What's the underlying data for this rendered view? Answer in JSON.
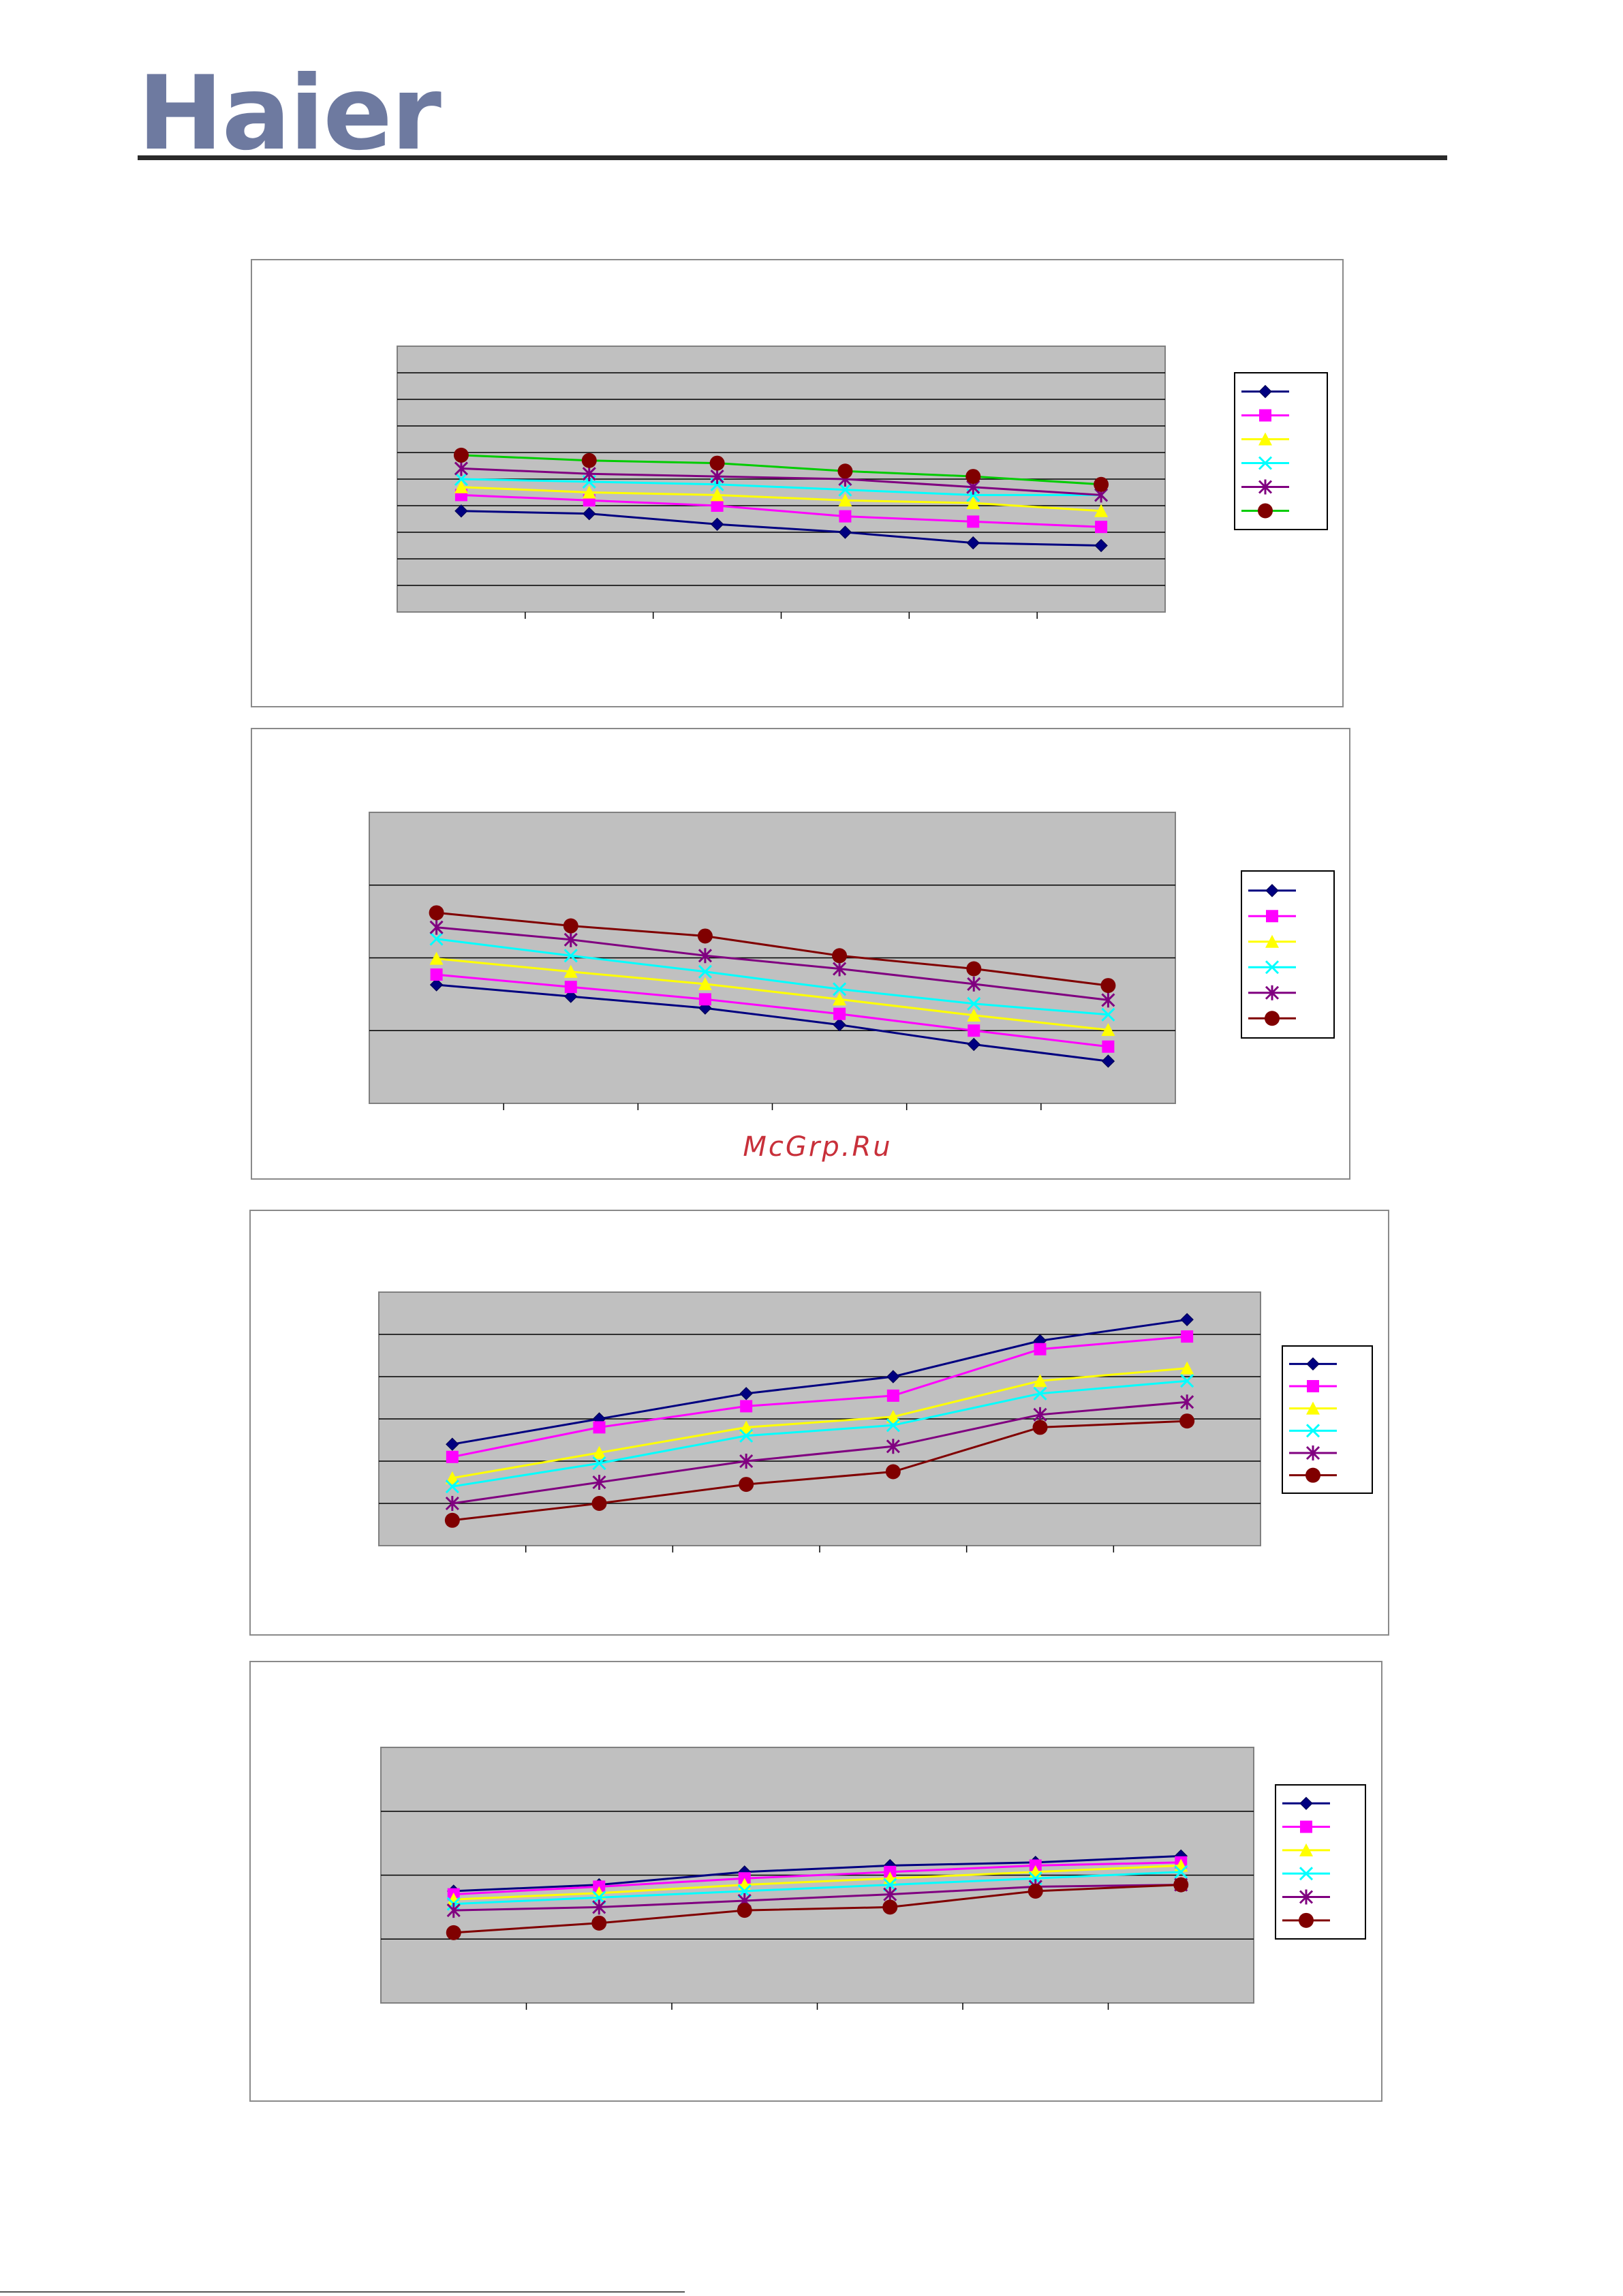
{
  "brand": {
    "logo_text": "Haier",
    "logo_color": "#6e7aa0"
  },
  "watermark": {
    "text": "McGrp.Ru",
    "color": "#c8303a"
  },
  "series_style": [
    {
      "color": "#000080",
      "marker": "diamond"
    },
    {
      "color": "#ff00ff",
      "marker": "square"
    },
    {
      "color": "#ffff00",
      "marker": "triangle"
    },
    {
      "color": "#00ffff",
      "marker": "x"
    },
    {
      "color": "#800080",
      "marker": "star"
    },
    {
      "color": "#800000",
      "marker": "circle"
    }
  ],
  "chart_data": [
    {
      "type": "line",
      "plot_background": "#c0c0c0",
      "grid": true,
      "legend": "right",
      "ylim": [
        0,
        10
      ],
      "gridlines": 10,
      "x": [
        1,
        2,
        3,
        4,
        5,
        6
      ],
      "series_colors_override": {
        "5": {
          "color": "#00cc00",
          "marker_color": "#800000"
        }
      },
      "series": [
        {
          "values": [
            3.8,
            3.7,
            3.3,
            3.0,
            2.6,
            2.5
          ]
        },
        {
          "values": [
            4.4,
            4.2,
            4.0,
            3.6,
            3.4,
            3.2
          ]
        },
        {
          "values": [
            4.7,
            4.5,
            4.4,
            4.2,
            4.1,
            3.8
          ]
        },
        {
          "values": [
            5.0,
            4.9,
            4.8,
            4.6,
            4.4,
            4.4
          ]
        },
        {
          "values": [
            5.4,
            5.2,
            5.1,
            5.0,
            4.7,
            4.4
          ]
        },
        {
          "values": [
            5.9,
            5.7,
            5.6,
            5.3,
            5.1,
            4.8
          ]
        }
      ]
    },
    {
      "type": "line",
      "plot_background": "#c0c0c0",
      "grid": true,
      "legend": "right",
      "ylim": [
        0,
        4
      ],
      "gridlines": 4,
      "x": [
        1,
        2,
        3,
        4,
        5,
        6
      ],
      "series": [
        {
          "values": [
            1.63,
            1.47,
            1.31,
            1.08,
            0.81,
            0.58
          ]
        },
        {
          "values": [
            1.77,
            1.6,
            1.43,
            1.23,
            1.0,
            0.78
          ]
        },
        {
          "values": [
            1.99,
            1.81,
            1.64,
            1.43,
            1.21,
            1.01
          ]
        },
        {
          "values": [
            2.26,
            2.03,
            1.81,
            1.57,
            1.37,
            1.22
          ]
        },
        {
          "values": [
            2.42,
            2.25,
            2.03,
            1.85,
            1.64,
            1.42
          ]
        },
        {
          "values": [
            2.62,
            2.44,
            2.3,
            2.03,
            1.85,
            1.62
          ]
        }
      ]
    },
    {
      "type": "line",
      "plot_background": "#c0c0c0",
      "grid": true,
      "legend": "right",
      "ylim": [
        0,
        6
      ],
      "gridlines": 6,
      "x": [
        1,
        2,
        3,
        4,
        5,
        6
      ],
      "series": [
        {
          "values": [
            2.4,
            3.0,
            3.6,
            4.0,
            4.85,
            5.35
          ]
        },
        {
          "values": [
            2.1,
            2.8,
            3.3,
            3.55,
            4.65,
            4.95
          ]
        },
        {
          "values": [
            1.6,
            2.2,
            2.8,
            3.05,
            3.9,
            4.2
          ]
        },
        {
          "values": [
            1.4,
            1.95,
            2.6,
            2.85,
            3.6,
            3.9
          ]
        },
        {
          "values": [
            1.0,
            1.5,
            2.0,
            2.35,
            3.1,
            3.4
          ]
        },
        {
          "values": [
            0.6,
            1.0,
            1.45,
            1.75,
            2.8,
            2.95
          ]
        }
      ]
    },
    {
      "type": "line",
      "plot_background": "#c0c0c0",
      "grid": true,
      "legend": "right",
      "ylim": [
        0,
        4
      ],
      "gridlines": 4,
      "x": [
        1,
        2,
        3,
        4,
        5,
        6
      ],
      "series": [
        {
          "values": [
            1.75,
            1.85,
            2.05,
            2.15,
            2.2,
            2.3
          ]
        },
        {
          "values": [
            1.7,
            1.82,
            1.95,
            2.05,
            2.15,
            2.2
          ]
        },
        {
          "values": [
            1.62,
            1.72,
            1.85,
            1.95,
            2.05,
            2.15
          ]
        },
        {
          "values": [
            1.55,
            1.65,
            1.75,
            1.85,
            1.95,
            2.05
          ]
        },
        {
          "values": [
            1.45,
            1.5,
            1.6,
            1.7,
            1.82,
            1.85
          ]
        },
        {
          "values": [
            1.1,
            1.25,
            1.45,
            1.5,
            1.75,
            1.85
          ]
        }
      ]
    }
  ]
}
